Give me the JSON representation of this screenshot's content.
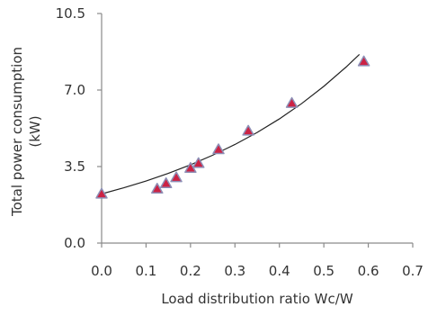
{
  "chart_data": {
    "type": "scatter",
    "title": "",
    "xlabel": "Load distribution ratio Wc/W",
    "ylabel_lines": [
      "Total power consumption",
      "(kW)"
    ],
    "xlim": [
      0.0,
      0.7
    ],
    "ylim": [
      0.0,
      10.5
    ],
    "xticks": [
      "0.0",
      "0.1",
      "0.2",
      "0.3",
      "0.4",
      "0.5",
      "0.6",
      "0.7"
    ],
    "yticks": [
      "0.0",
      "3.5",
      "7.0",
      "10.5"
    ],
    "grid": false,
    "legend": "none",
    "marker": "triangle",
    "marker_fill": "#cc2244",
    "marker_stroke": "#8d8fb6",
    "series": [
      {
        "x": [
          0.0,
          0.125,
          0.145,
          0.168,
          0.2,
          0.218,
          0.263,
          0.33,
          0.428,
          0.59
        ],
        "y": [
          2.25,
          2.48,
          2.73,
          3.0,
          3.43,
          3.65,
          4.28,
          5.13,
          6.4,
          8.3
        ]
      }
    ],
    "trendline": {
      "type": "exponential",
      "x": [
        0.0,
        0.05,
        0.1,
        0.15,
        0.2,
        0.25,
        0.3,
        0.35,
        0.4,
        0.45,
        0.5,
        0.55,
        0.58
      ],
      "y": [
        2.25,
        2.53,
        2.84,
        3.19,
        3.58,
        4.02,
        4.51,
        5.06,
        5.68,
        6.38,
        7.17,
        8.05,
        8.63
      ]
    }
  }
}
